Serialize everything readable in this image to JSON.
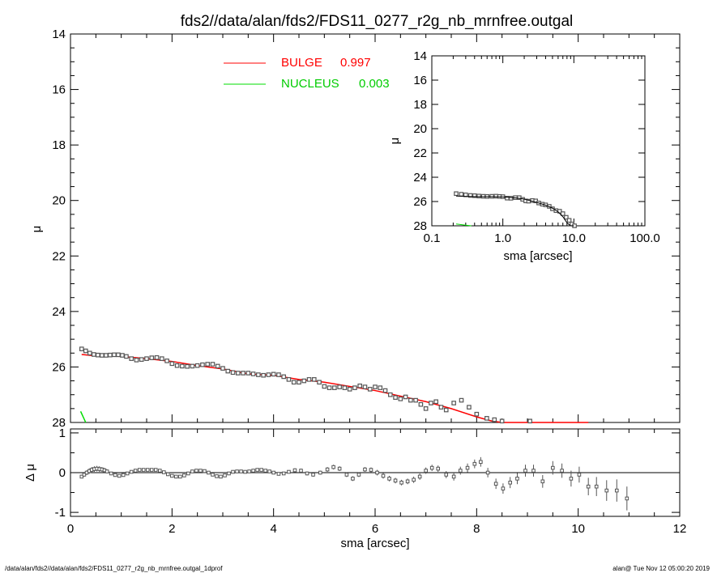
{
  "title": "fds2//data/alan/fds2/FDS11_0277_r2g_nb_mrnfree.outgal",
  "footer_left": "/data/alan/fds2//data/alan/fds2/FDS11_0277_r2g_nb_mrnfree.outgal_1dprof",
  "footer_right": "alan@  Tue Nov 12 05:00:20 2019",
  "colors": {
    "bulge": "#ff0000",
    "nucleus": "#00dd00",
    "data": "#555555",
    "axes": "#000000"
  },
  "chart_data": [
    {
      "id": "main",
      "type": "scatter",
      "xlabel": "",
      "ylabel": "μ",
      "xlim": [
        0,
        12
      ],
      "ylim": [
        28,
        14
      ],
      "y_inverted": true,
      "x_ticks": [
        0,
        2,
        4,
        6,
        8,
        10,
        12
      ],
      "y_ticks": [
        14,
        16,
        18,
        20,
        22,
        24,
        26,
        28
      ],
      "legend": [
        {
          "name": "BULGE",
          "value": "0.997",
          "color": "#ff0000"
        },
        {
          "name": "NUCLEUS",
          "value": "0.003",
          "color": "#00dd00"
        }
      ],
      "observed": {
        "x": [
          0.22,
          0.3,
          0.38,
          0.46,
          0.54,
          0.62,
          0.7,
          0.78,
          0.86,
          0.94,
          1.02,
          1.1,
          1.2,
          1.3,
          1.4,
          1.5,
          1.6,
          1.7,
          1.8,
          1.9,
          2.0,
          2.1,
          2.2,
          2.3,
          2.4,
          2.5,
          2.6,
          2.7,
          2.8,
          2.9,
          3.0,
          3.1,
          3.2,
          3.3,
          3.4,
          3.5,
          3.6,
          3.7,
          3.8,
          3.9,
          4.0,
          4.1,
          4.2,
          4.3,
          4.4,
          4.5,
          4.6,
          4.7,
          4.8,
          4.9,
          5.0,
          5.1,
          5.2,
          5.3,
          5.4,
          5.5,
          5.6,
          5.7,
          5.8,
          5.9,
          6.0,
          6.1,
          6.2,
          6.3,
          6.4,
          6.5,
          6.6,
          6.7,
          6.8,
          6.9,
          7.0,
          7.1,
          7.2,
          7.3,
          7.4,
          7.55,
          7.7,
          7.85,
          8.0,
          8.2,
          8.35,
          8.5,
          8.7,
          8.85,
          9.05,
          9.25,
          9.45,
          9.6,
          9.8,
          10.0,
          10.2
        ],
        "y": [
          25.35,
          25.42,
          25.5,
          25.55,
          25.57,
          25.58,
          25.58,
          25.57,
          25.56,
          25.56,
          25.58,
          25.62,
          25.7,
          25.75,
          25.73,
          25.7,
          25.67,
          25.66,
          25.7,
          25.78,
          25.88,
          25.95,
          25.97,
          25.98,
          25.97,
          25.95,
          25.92,
          25.9,
          25.9,
          25.97,
          26.05,
          26.15,
          26.2,
          26.22,
          26.22,
          26.22,
          26.25,
          26.28,
          26.3,
          26.28,
          26.26,
          26.28,
          26.35,
          26.45,
          26.55,
          26.55,
          26.5,
          26.45,
          26.45,
          26.55,
          26.7,
          26.75,
          26.75,
          26.72,
          26.75,
          26.8,
          26.75,
          26.68,
          26.72,
          26.8,
          26.72,
          26.75,
          26.85,
          27.0,
          27.1,
          27.15,
          27.08,
          27.2,
          27.2,
          27.35,
          27.5,
          27.3,
          27.25,
          27.45,
          27.55,
          27.3,
          27.2,
          27.45,
          27.7,
          27.85,
          27.9,
          27.95,
          28.05,
          28.1,
          27.95,
          28.05,
          27.98,
          28.05,
          28.1,
          28.1,
          28.05
        ]
      },
      "bulge_model": {
        "x": [
          0.22,
          0.5,
          1.0,
          1.5,
          2.0,
          2.5,
          3.0,
          3.5,
          4.0,
          4.5,
          5.0,
          5.5,
          6.0,
          6.5,
          7.0,
          7.5,
          8.0,
          8.3,
          8.5,
          8.6,
          8.9,
          9.0,
          9.1,
          9.3,
          9.5,
          10.0,
          10.2
        ],
        "y": [
          25.55,
          25.6,
          25.62,
          25.7,
          25.8,
          25.95,
          26.07,
          26.25,
          26.3,
          26.45,
          26.55,
          26.7,
          26.85,
          27.05,
          27.25,
          27.5,
          27.8,
          27.95,
          28.0,
          28.1,
          28.1,
          28.0,
          28.1,
          28.1,
          28.1,
          28.1,
          28.1
        ]
      },
      "nucleus_model": {
        "x": [
          0.2,
          0.3
        ],
        "y": [
          27.6,
          28.0
        ]
      }
    },
    {
      "id": "inset",
      "type": "scatter",
      "xlabel": "sma [arcsec]",
      "ylabel": "μ",
      "x_scale": "log",
      "xlim": [
        0.1,
        100.0
      ],
      "ylim": [
        28,
        14
      ],
      "y_inverted": true,
      "x_ticks": [
        0.1,
        1.0,
        10.0,
        100.0
      ],
      "x_tick_labels": [
        "0.1",
        "1.0",
        "10.0",
        "100.0"
      ],
      "y_ticks": [
        14,
        16,
        18,
        20,
        22,
        24,
        26,
        28
      ],
      "observed": {
        "x": [
          0.22,
          0.26,
          0.3,
          0.35,
          0.4,
          0.46,
          0.53,
          0.6,
          0.7,
          0.8,
          0.9,
          1.0,
          1.15,
          1.3,
          1.5,
          1.7,
          1.9,
          2.1,
          2.3,
          2.6,
          2.9,
          3.2,
          3.6,
          4.0,
          4.5,
          5.0,
          5.6,
          6.3,
          7.0,
          7.8,
          8.6,
          9.4,
          10.2
        ],
        "y": [
          25.35,
          25.4,
          25.45,
          25.5,
          25.52,
          25.55,
          25.57,
          25.58,
          25.57,
          25.56,
          25.58,
          25.6,
          25.72,
          25.73,
          25.68,
          25.68,
          25.82,
          25.95,
          25.97,
          25.92,
          25.95,
          26.12,
          26.22,
          26.28,
          26.4,
          26.6,
          26.75,
          26.8,
          27.0,
          27.3,
          27.55,
          27.85,
          28.0
        ]
      },
      "bulge_model": {
        "x": [
          0.22,
          0.4,
          0.7,
          1.0,
          1.5,
          2.0,
          3.0,
          4.0,
          5.0,
          6.0,
          7.0,
          8.0,
          9.0,
          10.0
        ],
        "y": [
          25.55,
          25.6,
          25.6,
          25.62,
          25.7,
          25.8,
          26.07,
          26.3,
          26.55,
          26.85,
          27.25,
          27.75,
          28.0,
          28.2
        ]
      },
      "nucleus_model": {
        "x": [
          0.22,
          0.3,
          0.36
        ],
        "y": [
          27.85,
          27.95,
          28.1
        ]
      }
    },
    {
      "id": "residual",
      "type": "scatter",
      "xlabel": "sma [arcsec]",
      "ylabel": "Δ μ",
      "xlim": [
        0,
        12
      ],
      "ylim": [
        -1.1,
        1.1
      ],
      "x_ticks": [
        0,
        2,
        4,
        6,
        8,
        10,
        12
      ],
      "y_ticks": [
        -1,
        0,
        1
      ],
      "points": [
        {
          "x": 0.22,
          "y": -0.1,
          "e": 0.04
        },
        {
          "x": 0.27,
          "y": -0.05,
          "e": 0.05
        },
        {
          "x": 0.32,
          "y": 0.0,
          "e": 0.06
        },
        {
          "x": 0.37,
          "y": 0.04,
          "e": 0.07
        },
        {
          "x": 0.42,
          "y": 0.07,
          "e": 0.07
        },
        {
          "x": 0.47,
          "y": 0.09,
          "e": 0.07
        },
        {
          "x": 0.52,
          "y": 0.1,
          "e": 0.07
        },
        {
          "x": 0.57,
          "y": 0.09,
          "e": 0.07
        },
        {
          "x": 0.62,
          "y": 0.08,
          "e": 0.06
        },
        {
          "x": 0.67,
          "y": 0.06,
          "e": 0.06
        },
        {
          "x": 0.72,
          "y": 0.03,
          "e": 0.05
        },
        {
          "x": 0.8,
          "y": -0.02,
          "e": 0.04
        },
        {
          "x": 0.88,
          "y": -0.06,
          "e": 0.03
        },
        {
          "x": 0.96,
          "y": -0.08,
          "e": 0.03
        },
        {
          "x": 1.04,
          "y": -0.06,
          "e": 0.03
        },
        {
          "x": 1.12,
          "y": -0.02,
          "e": 0.03
        },
        {
          "x": 1.2,
          "y": 0.02,
          "e": 0.03
        },
        {
          "x": 1.28,
          "y": 0.05,
          "e": 0.03
        },
        {
          "x": 1.36,
          "y": 0.07,
          "e": 0.03
        },
        {
          "x": 1.44,
          "y": 0.07,
          "e": 0.03
        },
        {
          "x": 1.52,
          "y": 0.07,
          "e": 0.03
        },
        {
          "x": 1.6,
          "y": 0.07,
          "e": 0.03
        },
        {
          "x": 1.68,
          "y": 0.07,
          "e": 0.03
        },
        {
          "x": 1.76,
          "y": 0.05,
          "e": 0.03
        },
        {
          "x": 1.84,
          "y": 0.01,
          "e": 0.03
        },
        {
          "x": 1.92,
          "y": -0.04,
          "e": 0.03
        },
        {
          "x": 2.0,
          "y": -0.08,
          "e": 0.03
        },
        {
          "x": 2.08,
          "y": -0.1,
          "e": 0.03
        },
        {
          "x": 2.16,
          "y": -0.1,
          "e": 0.03
        },
        {
          "x": 2.24,
          "y": -0.07,
          "e": 0.03
        },
        {
          "x": 2.32,
          "y": -0.02,
          "e": 0.03
        },
        {
          "x": 2.4,
          "y": 0.03,
          "e": 0.03
        },
        {
          "x": 2.48,
          "y": 0.05,
          "e": 0.03
        },
        {
          "x": 2.56,
          "y": 0.05,
          "e": 0.03
        },
        {
          "x": 2.64,
          "y": 0.04,
          "e": 0.03
        },
        {
          "x": 2.72,
          "y": 0.0,
          "e": 0.03
        },
        {
          "x": 2.8,
          "y": -0.05,
          "e": 0.03
        },
        {
          "x": 2.88,
          "y": -0.09,
          "e": 0.03
        },
        {
          "x": 2.96,
          "y": -0.1,
          "e": 0.03
        },
        {
          "x": 3.04,
          "y": -0.07,
          "e": 0.03
        },
        {
          "x": 3.12,
          "y": -0.02,
          "e": 0.03
        },
        {
          "x": 3.2,
          "y": 0.02,
          "e": 0.03
        },
        {
          "x": 3.28,
          "y": 0.03,
          "e": 0.03
        },
        {
          "x": 3.36,
          "y": 0.03,
          "e": 0.03
        },
        {
          "x": 3.44,
          "y": 0.02,
          "e": 0.03
        },
        {
          "x": 3.52,
          "y": 0.03,
          "e": 0.03
        },
        {
          "x": 3.6,
          "y": 0.05,
          "e": 0.03
        },
        {
          "x": 3.68,
          "y": 0.07,
          "e": 0.03
        },
        {
          "x": 3.76,
          "y": 0.07,
          "e": 0.03
        },
        {
          "x": 3.84,
          "y": 0.05,
          "e": 0.03
        },
        {
          "x": 3.92,
          "y": 0.03,
          "e": 0.03
        },
        {
          "x": 4.0,
          "y": 0.0,
          "e": 0.03
        },
        {
          "x": 4.1,
          "y": -0.03,
          "e": 0.04
        },
        {
          "x": 4.2,
          "y": -0.02,
          "e": 0.04
        },
        {
          "x": 4.3,
          "y": 0.02,
          "e": 0.04
        },
        {
          "x": 4.42,
          "y": 0.06,
          "e": 0.05
        },
        {
          "x": 4.54,
          "y": 0.05,
          "e": 0.05
        },
        {
          "x": 4.66,
          "y": -0.02,
          "e": 0.05
        },
        {
          "x": 4.78,
          "y": -0.05,
          "e": 0.05
        },
        {
          "x": 4.92,
          "y": 0.0,
          "e": 0.05
        },
        {
          "x": 5.06,
          "y": 0.08,
          "e": 0.06
        },
        {
          "x": 5.18,
          "y": 0.14,
          "e": 0.06
        },
        {
          "x": 5.3,
          "y": 0.1,
          "e": 0.06
        },
        {
          "x": 5.44,
          "y": -0.05,
          "e": 0.06
        },
        {
          "x": 5.56,
          "y": -0.15,
          "e": 0.06
        },
        {
          "x": 5.68,
          "y": -0.05,
          "e": 0.06
        },
        {
          "x": 5.8,
          "y": 0.08,
          "e": 0.06
        },
        {
          "x": 5.92,
          "y": 0.07,
          "e": 0.06
        },
        {
          "x": 6.04,
          "y": 0.0,
          "e": 0.07
        },
        {
          "x": 6.16,
          "y": -0.08,
          "e": 0.07
        },
        {
          "x": 6.28,
          "y": -0.15,
          "e": 0.07
        },
        {
          "x": 6.4,
          "y": -0.2,
          "e": 0.07
        },
        {
          "x": 6.52,
          "y": -0.25,
          "e": 0.07
        },
        {
          "x": 6.64,
          "y": -0.22,
          "e": 0.07
        },
        {
          "x": 6.76,
          "y": -0.18,
          "e": 0.08
        },
        {
          "x": 6.88,
          "y": -0.1,
          "e": 0.08
        },
        {
          "x": 7.0,
          "y": 0.05,
          "e": 0.08
        },
        {
          "x": 7.12,
          "y": 0.12,
          "e": 0.08
        },
        {
          "x": 7.24,
          "y": 0.1,
          "e": 0.08
        },
        {
          "x": 7.4,
          "y": -0.05,
          "e": 0.09
        },
        {
          "x": 7.55,
          "y": -0.1,
          "e": 0.1
        },
        {
          "x": 7.68,
          "y": 0.05,
          "e": 0.1
        },
        {
          "x": 7.82,
          "y": 0.12,
          "e": 0.11
        },
        {
          "x": 7.96,
          "y": 0.22,
          "e": 0.11
        },
        {
          "x": 8.08,
          "y": 0.27,
          "e": 0.12
        },
        {
          "x": 8.22,
          "y": 0.0,
          "e": 0.12
        },
        {
          "x": 8.38,
          "y": -0.28,
          "e": 0.13
        },
        {
          "x": 8.52,
          "y": -0.4,
          "e": 0.13
        },
        {
          "x": 8.66,
          "y": -0.25,
          "e": 0.14
        },
        {
          "x": 8.8,
          "y": -0.15,
          "e": 0.14
        },
        {
          "x": 8.96,
          "y": 0.05,
          "e": 0.15
        },
        {
          "x": 9.12,
          "y": 0.05,
          "e": 0.15
        },
        {
          "x": 9.3,
          "y": -0.22,
          "e": 0.16
        },
        {
          "x": 9.5,
          "y": 0.12,
          "e": 0.17
        },
        {
          "x": 9.68,
          "y": 0.05,
          "e": 0.18
        },
        {
          "x": 9.86,
          "y": -0.15,
          "e": 0.2
        },
        {
          "x": 10.02,
          "y": -0.05,
          "e": 0.2
        },
        {
          "x": 10.2,
          "y": -0.35,
          "e": 0.22
        },
        {
          "x": 10.36,
          "y": -0.35,
          "e": 0.24
        },
        {
          "x": 10.56,
          "y": -0.45,
          "e": 0.26
        },
        {
          "x": 10.76,
          "y": -0.45,
          "e": 0.28
        },
        {
          "x": 10.96,
          "y": -0.65,
          "e": 0.3
        }
      ]
    }
  ]
}
